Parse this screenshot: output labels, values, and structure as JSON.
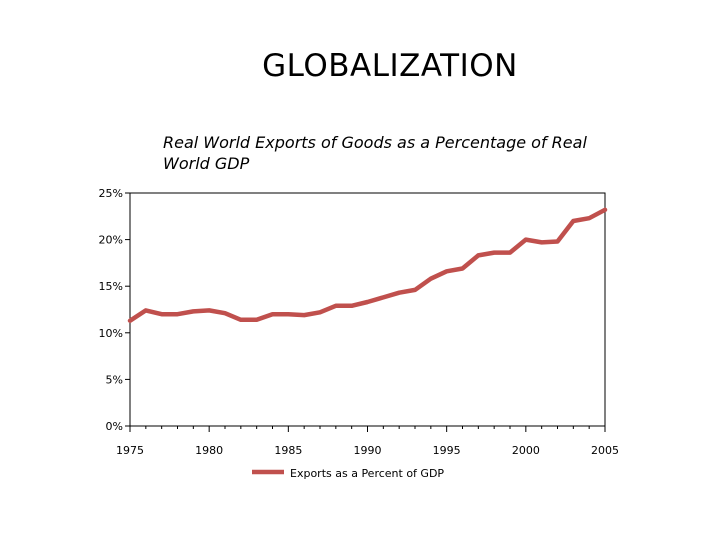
{
  "page": {
    "title": "GLOBALIZATION"
  },
  "chart_data": {
    "type": "line",
    "title": "Real World Exports of Goods as a Percentage of Real World GDP",
    "xlabel": "",
    "ylabel": "",
    "xlim": [
      1975,
      2005
    ],
    "ylim": [
      0,
      25
    ],
    "x_ticks": [
      1975,
      1980,
      1985,
      1990,
      1995,
      2000,
      2005
    ],
    "x_tick_labels": [
      "1975",
      "1980",
      "1985",
      "1990",
      "1995",
      "2000",
      "2005"
    ],
    "y_ticks": [
      0,
      5,
      10,
      15,
      20,
      25
    ],
    "y_tick_labels": [
      "0%",
      "5%",
      "10%",
      "15%",
      "20%",
      "25%"
    ],
    "grid": false,
    "legend_position": "bottom",
    "series": [
      {
        "name": "Exports as a Percent of GDP",
        "color": "#c0504d",
        "x": [
          1975,
          1976,
          1977,
          1978,
          1979,
          1980,
          1981,
          1982,
          1983,
          1984,
          1985,
          1986,
          1987,
          1988,
          1989,
          1990,
          1991,
          1992,
          1993,
          1994,
          1995,
          1996,
          1997,
          1998,
          1999,
          2000,
          2001,
          2002,
          2003,
          2004,
          2005
        ],
        "values": [
          11.3,
          12.4,
          12.0,
          12.0,
          12.3,
          12.4,
          12.1,
          11.4,
          11.4,
          12.0,
          12.0,
          11.9,
          12.2,
          12.9,
          12.9,
          13.3,
          13.8,
          14.3,
          14.6,
          15.8,
          16.6,
          16.9,
          18.3,
          18.6,
          18.6,
          20.0,
          19.7,
          19.8,
          22.0,
          22.3,
          23.2
        ]
      }
    ]
  }
}
